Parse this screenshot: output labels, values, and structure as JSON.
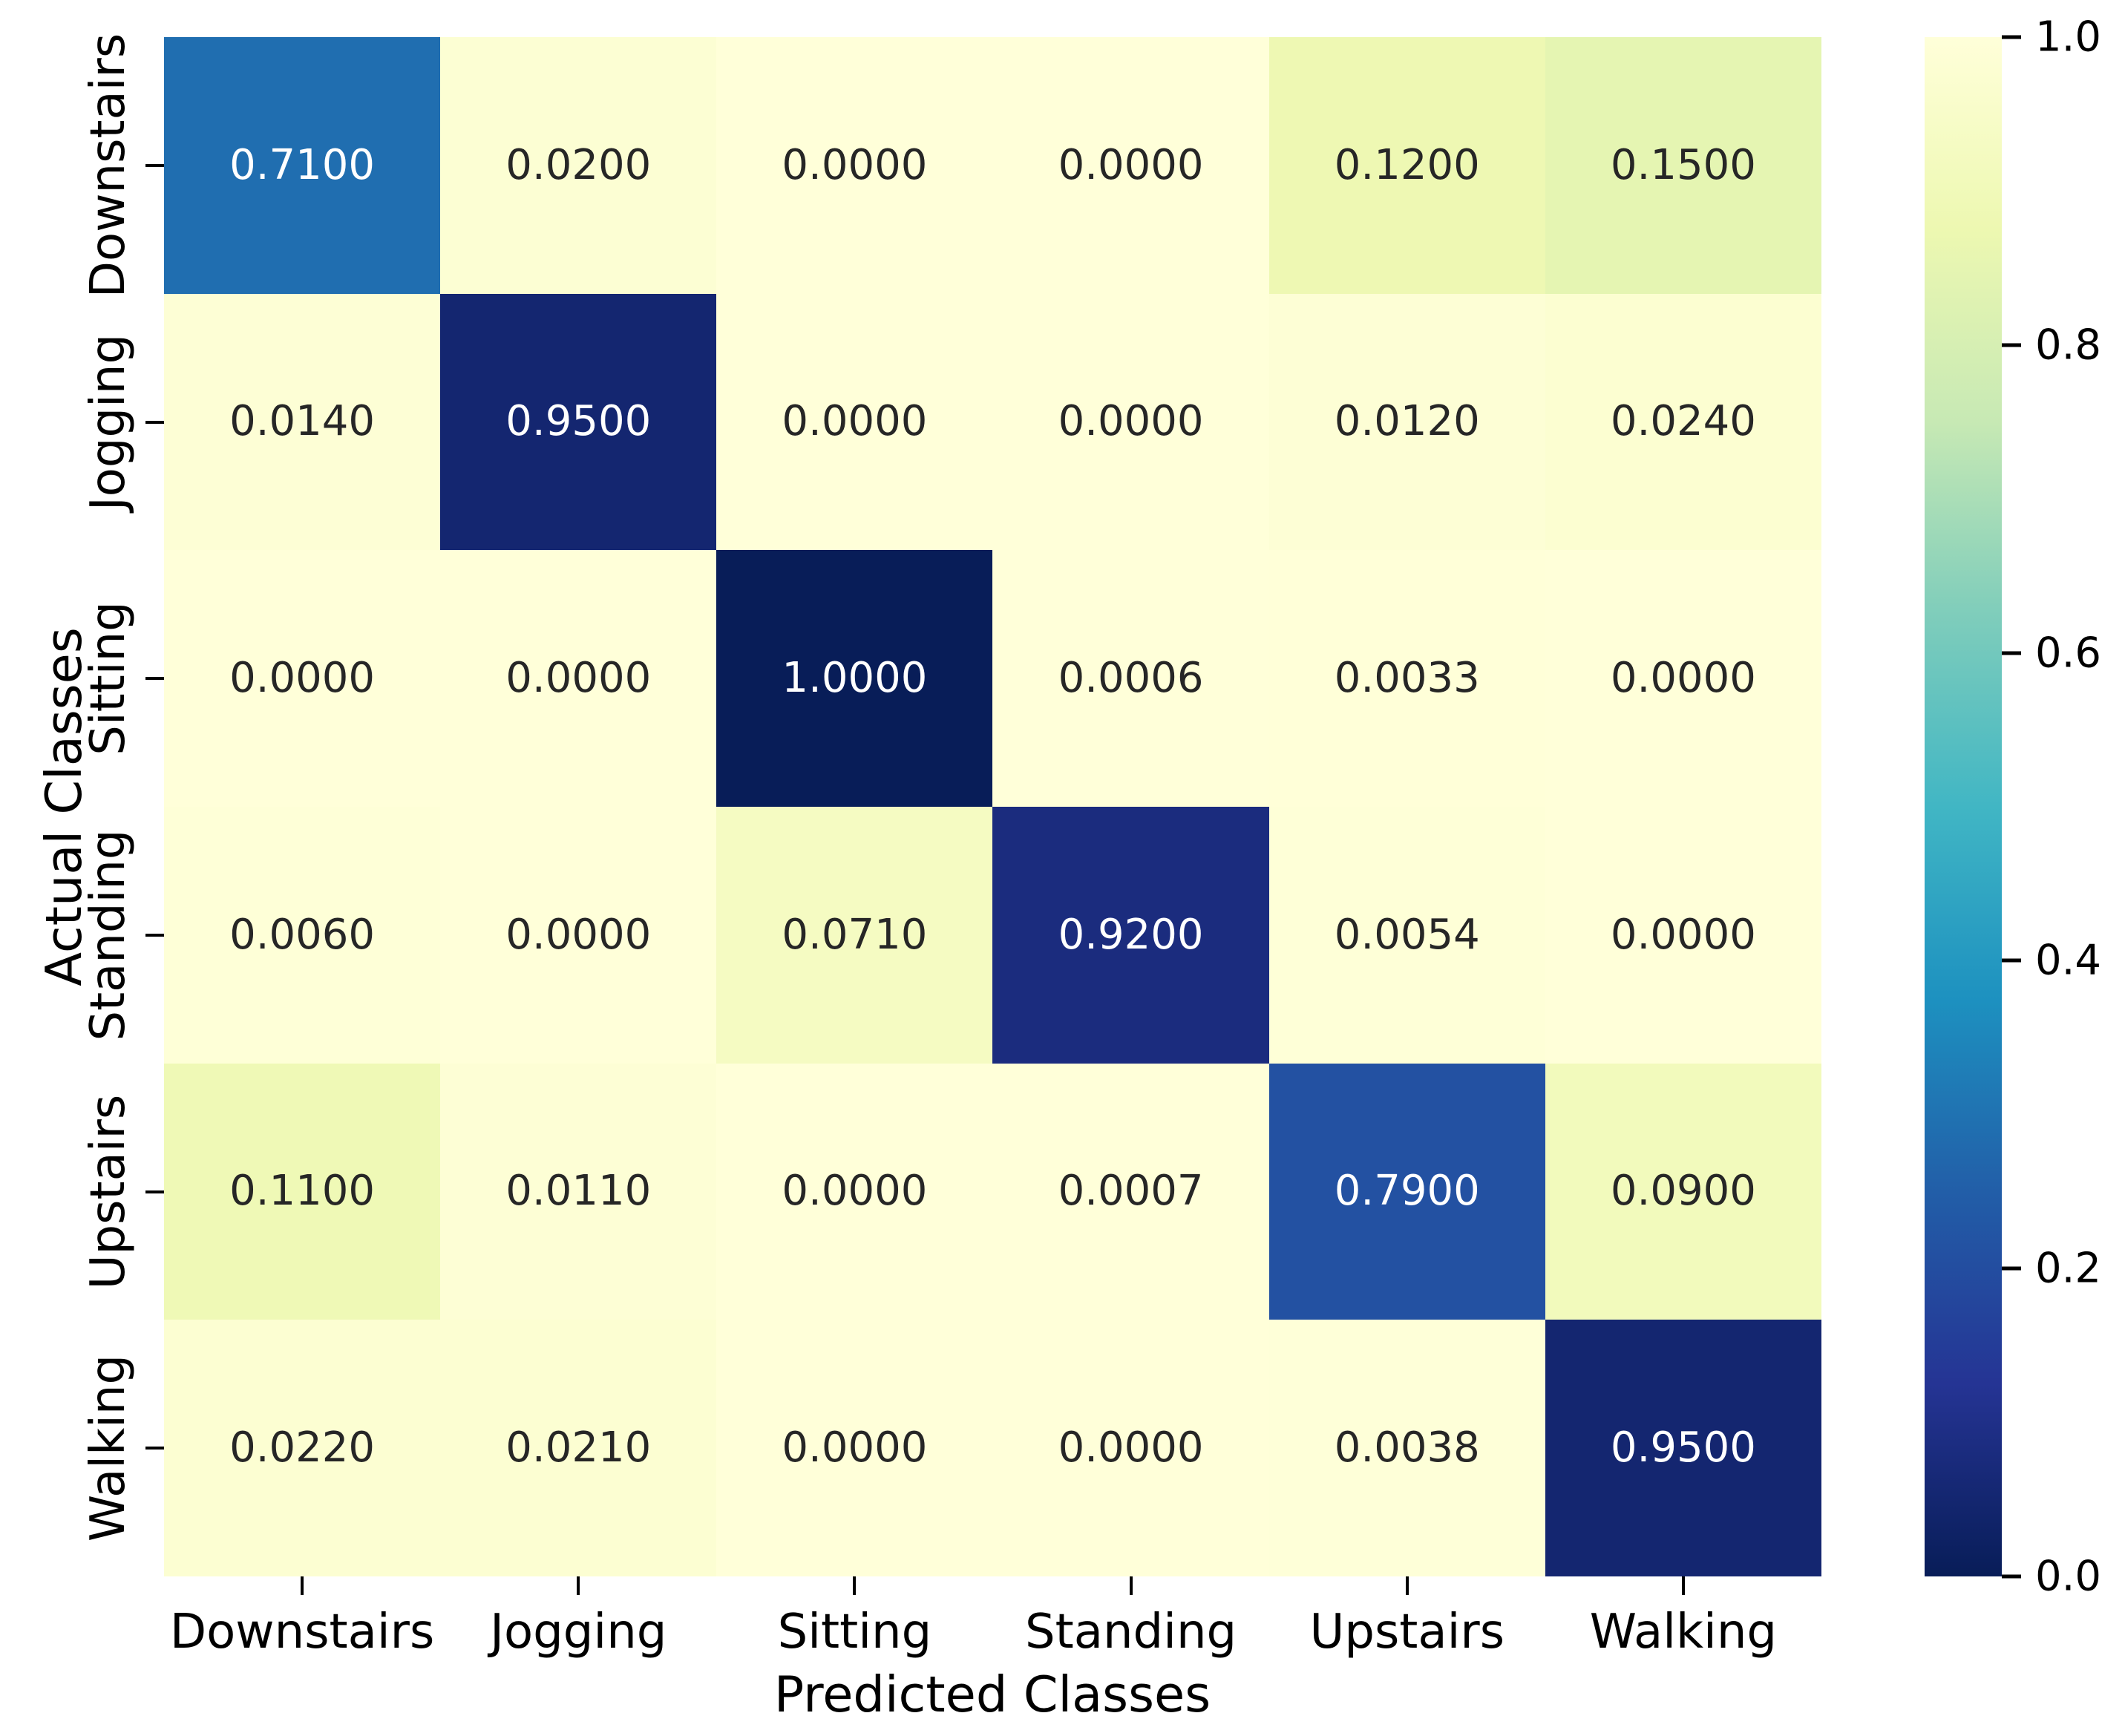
{
  "chart_data": {
    "type": "heatmap",
    "title": "",
    "xlabel": "Predicted Classes",
    "ylabel": "Actual Classes",
    "x_categories": [
      "Downstairs",
      "Jogging",
      "Sitting",
      "Standing",
      "Upstairs",
      "Walking"
    ],
    "y_categories": [
      "Downstairs",
      "Jogging",
      "Sitting",
      "Standing",
      "Upstairs",
      "Walking"
    ],
    "matrix": [
      [
        0.71,
        0.02,
        0.0,
        0.0,
        0.12,
        0.15
      ],
      [
        0.014,
        0.95,
        0.0,
        0.0,
        0.012,
        0.024
      ],
      [
        0.0,
        0.0,
        1.0,
        0.0006,
        0.0033,
        0.0
      ],
      [
        0.006,
        0.0,
        0.071,
        0.92,
        0.0054,
        0.0
      ],
      [
        0.11,
        0.011,
        0.0,
        0.0007,
        0.79,
        0.09
      ],
      [
        0.022,
        0.021,
        0.0,
        0.0,
        0.0038,
        0.95
      ]
    ],
    "value_decimals": 4,
    "grid": false,
    "legend_position": "none",
    "colormap": {
      "name": "YlGnBu",
      "anchors": [
        {
          "t": 0.0,
          "color": "#ffffd9"
        },
        {
          "t": 0.125,
          "color": "#edf8b1"
        },
        {
          "t": 0.25,
          "color": "#c7e9b4"
        },
        {
          "t": 0.375,
          "color": "#7fcdbb"
        },
        {
          "t": 0.5,
          "color": "#41b6c4"
        },
        {
          "t": 0.625,
          "color": "#1d91c0"
        },
        {
          "t": 0.75,
          "color": "#225ea8"
        },
        {
          "t": 0.875,
          "color": "#253494"
        },
        {
          "t": 1.0,
          "color": "#081d58"
        }
      ]
    },
    "annotation_colors": {
      "dark_text": "#262626",
      "light_text": "#ffffff"
    },
    "colorbar": {
      "min": 0.0,
      "max": 1.0,
      "position": "right",
      "tick_values": [
        0.0,
        0.2,
        0.4,
        0.6,
        0.8,
        1.0
      ],
      "tick_labels": [
        "0.0",
        "0.2",
        "0.4",
        "0.6",
        "0.8",
        "1.0"
      ]
    }
  }
}
